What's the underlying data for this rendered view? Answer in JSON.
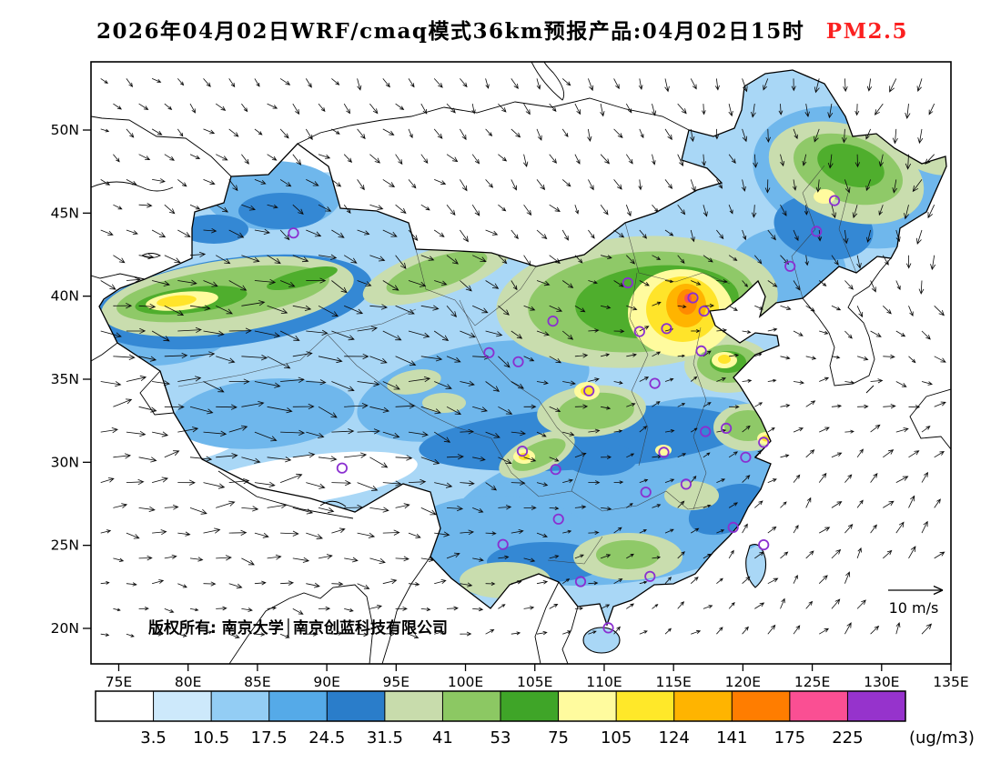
{
  "figure": {
    "background": "#ffffff"
  },
  "title": {
    "text": "2026年04月02日WRF/cmaq模式36km预报产品:04月02日15时",
    "species": "PM2.5",
    "species_color": "#fb2020"
  },
  "map": {
    "copyright": "版权所有: 南京大学│南京创蓝科技有限公司",
    "wind_legend": {
      "label": "10 m/s"
    },
    "marker_color": "#8a2fd0",
    "lat_ticks": [
      {
        "label": "50N",
        "value": 50
      },
      {
        "label": "45N",
        "value": 45
      },
      {
        "label": "40N",
        "value": 40
      },
      {
        "label": "35N",
        "value": 35
      },
      {
        "label": "30N",
        "value": 30
      },
      {
        "label": "25N",
        "value": 25
      },
      {
        "label": "20N",
        "value": 20
      }
    ],
    "lon_ticks": [
      {
        "label": "75E",
        "value": 75
      },
      {
        "label": "80E",
        "value": 80
      },
      {
        "label": "85E",
        "value": 85
      },
      {
        "label": "90E",
        "value": 90
      },
      {
        "label": "95E",
        "value": 95
      },
      {
        "label": "100E",
        "value": 100
      },
      {
        "label": "105E",
        "value": 105
      },
      {
        "label": "110E",
        "value": 110
      },
      {
        "label": "115E",
        "value": 115
      },
      {
        "label": "120E",
        "value": 120
      },
      {
        "label": "125E",
        "value": 125
      },
      {
        "label": "130E",
        "value": 130
      },
      {
        "label": "135E",
        "value": 135
      }
    ],
    "city_markers": [
      [
        87.6,
        43.8
      ],
      [
        126.6,
        45.75
      ],
      [
        125.3,
        43.9
      ],
      [
        123.4,
        41.8
      ],
      [
        116.4,
        39.9
      ],
      [
        117.2,
        39.1
      ],
      [
        114.5,
        38.05
      ],
      [
        112.55,
        37.87
      ],
      [
        111.7,
        40.8
      ],
      [
        106.3,
        38.5
      ],
      [
        103.8,
        36.05
      ],
      [
        101.7,
        36.6
      ],
      [
        108.9,
        34.3
      ],
      [
        113.65,
        34.75
      ],
      [
        117.0,
        36.7
      ],
      [
        118.8,
        32.05
      ],
      [
        121.5,
        31.2
      ],
      [
        120.2,
        30.3
      ],
      [
        117.3,
        31.85
      ],
      [
        114.3,
        30.6
      ],
      [
        104.1,
        30.67
      ],
      [
        106.5,
        29.57
      ],
      [
        91.1,
        29.65
      ],
      [
        102.7,
        25.05
      ],
      [
        106.7,
        26.58
      ],
      [
        113.0,
        28.2
      ],
      [
        115.9,
        28.68
      ],
      [
        119.3,
        26.08
      ],
      [
        113.3,
        23.13
      ],
      [
        108.3,
        22.82
      ],
      [
        110.3,
        20.03
      ],
      [
        121.5,
        25.03
      ]
    ],
    "wind_field": {
      "lons": [
        74,
        84,
        94,
        104,
        114,
        124,
        134
      ],
      "lats": [
        53,
        45,
        37,
        29,
        21
      ],
      "angle": [
        [
          40,
          50,
          55,
          60,
          70,
          95,
          110
        ],
        [
          20,
          25,
          35,
          50,
          60,
          80,
          115
        ],
        [
          5,
          8,
          12,
          30,
          -30,
          10,
          40
        ],
        [
          -5,
          0,
          8,
          15,
          -25,
          -45,
          -50
        ],
        [
          5,
          8,
          3,
          -15,
          -35,
          -50,
          -55
        ]
      ],
      "length": [
        [
          10,
          11,
          12,
          12,
          13,
          14,
          15
        ],
        [
          13,
          15,
          14,
          13,
          12,
          13,
          15
        ],
        [
          22,
          27,
          24,
          15,
          9,
          10,
          13
        ],
        [
          16,
          24,
          21,
          13,
          9,
          11,
          14
        ],
        [
          9,
          11,
          12,
          10,
          9,
          12,
          14
        ]
      ]
    }
  },
  "colorbar": {
    "unit": "(ug/m3)",
    "tick_labels": [
      "3.5",
      "10.5",
      "17.5",
      "24.5",
      "31.5",
      "41",
      "53",
      "75",
      "105",
      "124",
      "141",
      "175",
      "225"
    ],
    "colors": [
      "#ffffff",
      "#cde9fb",
      "#93cdf4",
      "#55aae8",
      "#2a7dca",
      "#c8dcac",
      "#8cc863",
      "#3fa528",
      "#fffb9e",
      "#ffe829",
      "#ffb400",
      "#ff7d00",
      "#fa4f93",
      "#9633cc"
    ]
  }
}
